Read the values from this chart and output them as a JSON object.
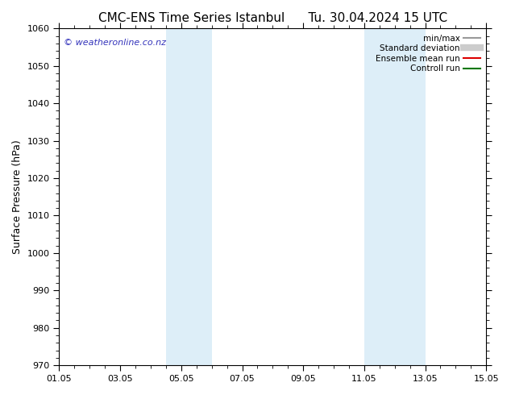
{
  "title_left": "CMC-ENS Time Series Istanbul",
  "title_right": "Tu. 30.04.2024 15 UTC",
  "ylabel": "Surface Pressure (hPa)",
  "xlim": [
    0,
    14
  ],
  "ylim": [
    970,
    1060
  ],
  "yticks": [
    970,
    980,
    990,
    1000,
    1010,
    1020,
    1030,
    1040,
    1050,
    1060
  ],
  "xticks": [
    0,
    2,
    4,
    6,
    8,
    10,
    12,
    14
  ],
  "xtick_labels": [
    "01.05",
    "03.05",
    "05.05",
    "07.05",
    "09.05",
    "11.05",
    "13.05",
    "15.05"
  ],
  "shaded_regions": [
    {
      "x_start": 3.5,
      "x_end": 5.0,
      "color": "#ddeef8"
    },
    {
      "x_start": 10.0,
      "x_end": 12.0,
      "color": "#ddeef8"
    }
  ],
  "watermark_text": "© weatheronline.co.nz",
  "watermark_color": "#3333bb",
  "legend_items": [
    {
      "label": "min/max",
      "color": "#999999",
      "lw": 1.5
    },
    {
      "label": "Standard deviation",
      "color": "#cccccc",
      "lw": 6
    },
    {
      "label": "Ensemble mean run",
      "color": "#dd0000",
      "lw": 1.5
    },
    {
      "label": "Controll run",
      "color": "#007700",
      "lw": 1.5
    }
  ],
  "background_color": "#ffffff",
  "title_fontsize": 11,
  "tick_fontsize": 8,
  "ylabel_fontsize": 9
}
